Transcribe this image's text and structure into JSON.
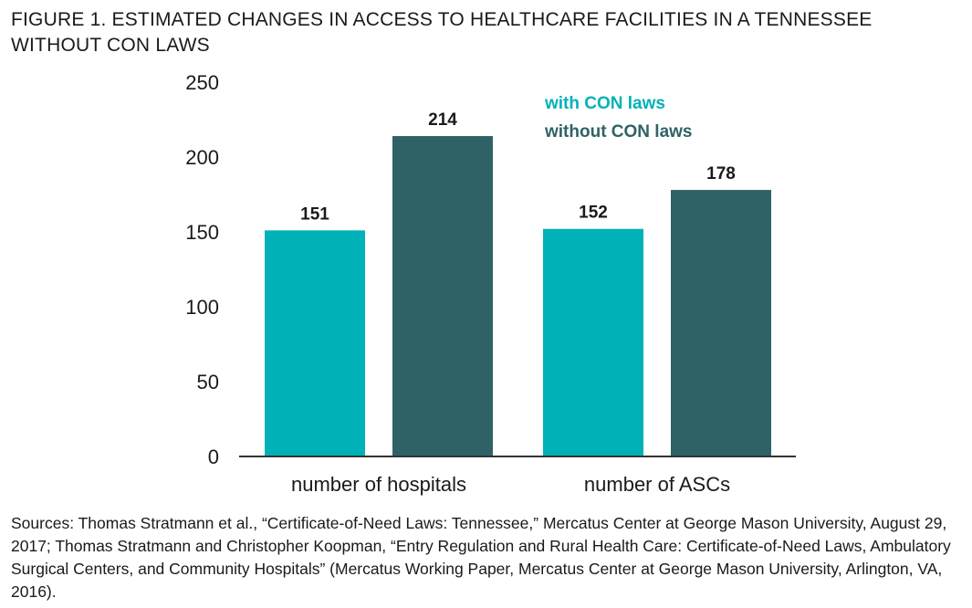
{
  "title": "FIGURE 1. ESTIMATED CHANGES IN ACCESS TO HEALTHCARE FACILITIES IN A TENNESSEE WITHOUT CON LAWS",
  "source": "Sources: Thomas Stratmann et al., “Certificate-of-Need Laws: Tennessee,” Mercatus Center at George Mason University, August 29, 2017; Thomas Stratmann and Christopher Koopman, “Entry Regulation and Rural Health Care: Certificate-of-Need Laws, Ambulatory Surgical Centers, and Community Hospitals” (Mercatus Working Paper, Mercatus Center at George Mason University, Arlington, VA, 2016).",
  "colors": {
    "with": "#00b2b8",
    "without": "#2f6266",
    "axis": "#333333",
    "text": "#1a1a1a"
  },
  "chart_data": {
    "type": "bar",
    "categories": [
      "number of hospitals",
      "number of ASCs"
    ],
    "series": [
      {
        "name": "with CON laws",
        "values": [
          151,
          152
        ],
        "color": "#00b2b8"
      },
      {
        "name": "without CON laws",
        "values": [
          214,
          178
        ],
        "color": "#2f6266"
      }
    ],
    "ylim": [
      0,
      250
    ],
    "yticks": [
      0,
      50,
      100,
      150,
      200,
      250
    ],
    "legend_position": "top-right",
    "grid": false,
    "data_labels": true
  }
}
